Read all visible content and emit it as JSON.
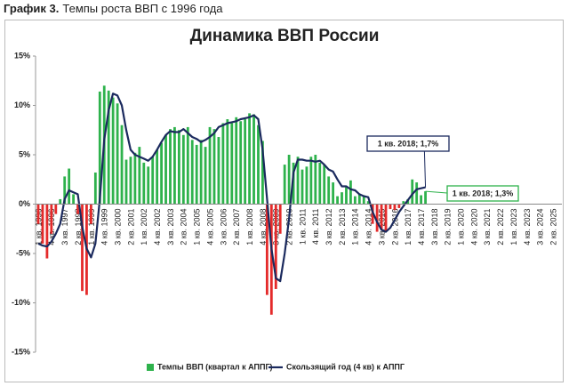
{
  "header": {
    "label": "График 3.",
    "text": "Темпы роста ВВП с 1996 года"
  },
  "chart_data": {
    "type": "bar-line",
    "title": "Динамика ВВП России",
    "categories": [
      "1 кв. 1996",
      null,
      null,
      "4 кв. 1996",
      null,
      null,
      "3 кв. 1997",
      null,
      null,
      "2 кв. 1998",
      null,
      null,
      "1 кв. 1999",
      null,
      null,
      "4 кв. 1999",
      null,
      null,
      "3 кв. 2000",
      null,
      null,
      "2 кв. 2001",
      null,
      null,
      "1 кв. 2002",
      null,
      null,
      "4 кв. 2002",
      null,
      null,
      "3 кв. 2003",
      null,
      null,
      "2 кв. 2004",
      null,
      null,
      "1 кв. 2005",
      null,
      null,
      "4 кв. 2005",
      null,
      null,
      "3 кв. 2006",
      null,
      null,
      "2 кв. 2007",
      null,
      null,
      "1 кв. 2008",
      null,
      null,
      "4 кв. 2008",
      null,
      null,
      "3 кв. 2009",
      null,
      null,
      "2 кв. 2010",
      null,
      null,
      "1 кв. 2011",
      null,
      null,
      "4 кв. 2011",
      null,
      null,
      "3 кв. 2012",
      null,
      null,
      "2 кв. 2013",
      null,
      null,
      "1 кв. 2014",
      null,
      null,
      "4 кв. 2014",
      null,
      null,
      "3 кв. 2015",
      null,
      null,
      "2 кв. 2016",
      null,
      null,
      "1 кв. 2017",
      null,
      null,
      "4 кв. 2017",
      null,
      null,
      "3 кв. 2018",
      null,
      null,
      "2 кв. 2019",
      null,
      null,
      "1 кв. 2020",
      null,
      null,
      "4 кв. 2020",
      null,
      null,
      "3 кв. 2021",
      null,
      null,
      "2 кв. 2022",
      null,
      null,
      "1 кв. 2023",
      null,
      null,
      "4 кв. 2023",
      null,
      null,
      "3 кв. 2024",
      null,
      null,
      "2 кв. 2025",
      null,
      null
    ],
    "series": [
      {
        "name": "Темпы ВВП (квартал к АППГ)",
        "type": "bar",
        "color": "#2eb24c",
        "negative_color": "#e42a2a",
        "values": [
          -2,
          -4,
          -5.5,
          -3,
          -1,
          0.5,
          2.8,
          3.6,
          1,
          -1,
          -8.8,
          -9.2,
          -2,
          3.2,
          11.4,
          12,
          11.5,
          10.8,
          10.2,
          8,
          4.5,
          4.8,
          5.2,
          5.8,
          4.2,
          3.8,
          4.8,
          5.5,
          6.2,
          7,
          7.6,
          7.8,
          7.5,
          7,
          7.8,
          6.5,
          6,
          6.5,
          5.8,
          7.8,
          7.6,
          6.8,
          8.2,
          8.6,
          8.2,
          8.8,
          8.4,
          8.6,
          9.2,
          9.1,
          8,
          6.4,
          -9.2,
          -11.2,
          -8.6,
          -3,
          4,
          5,
          4.2,
          4.8,
          3.5,
          3.8,
          4.8,
          5,
          4.2,
          4,
          2.8,
          2.2,
          0.8,
          1.2,
          1.8,
          2.4,
          0.8,
          1,
          0.9,
          0.3,
          -2,
          -2.8,
          -2.6,
          -2.7,
          -0.5,
          -0.6,
          -0.4,
          0.3,
          0.5,
          2.5,
          2.2,
          0.9,
          1.3,
          null,
          null,
          null,
          null,
          null,
          null,
          null,
          null,
          null,
          null,
          null,
          null,
          null,
          null,
          null,
          null,
          null,
          null,
          null,
          null,
          null,
          null,
          null,
          null,
          null,
          null,
          null,
          null,
          null,
          null,
          null
        ]
      },
      {
        "name": "Скользящий год (4 кв) к АППГ",
        "type": "line",
        "color": "#1b2a5e",
        "values": [
          -4,
          -4.2,
          -4.3,
          -3.8,
          -3,
          -2,
          0.5,
          1.4,
          1.2,
          1,
          -2.3,
          -4.5,
          -5.4,
          -4,
          0.5,
          6.5,
          9.5,
          11.2,
          11,
          10,
          7.5,
          5.5,
          5,
          4.8,
          4.6,
          4.4,
          4.8,
          5.5,
          6.3,
          7,
          7.4,
          7.3,
          7.3,
          7.6,
          7.2,
          6.8,
          6.6,
          6.3,
          6.5,
          6.8,
          7.2,
          7.8,
          8,
          8.2,
          8.3,
          8.4,
          8.6,
          8.7,
          8.8,
          9,
          8.6,
          5.5,
          0.5,
          -4.5,
          -7.5,
          -7.8,
          -5,
          -1.5,
          3.2,
          4.5,
          4.5,
          4.4,
          4.4,
          4.3,
          4.4,
          4,
          3.5,
          3.3,
          2.5,
          1.8,
          1.8,
          1.5,
          1.4,
          1,
          0.8,
          0.7,
          -0.8,
          -1.8,
          -2.6,
          -2.8,
          -2.4,
          -1.6,
          -0.8,
          -0.2,
          0.4,
          1,
          1.5,
          1.6,
          1.7,
          null,
          null,
          null,
          null,
          null,
          null,
          null,
          null,
          null,
          null,
          null,
          null,
          null,
          null,
          null,
          null,
          null,
          null,
          null,
          null,
          null,
          null,
          null,
          null,
          null,
          null,
          null,
          null,
          null,
          null,
          null
        ]
      }
    ],
    "ylim": [
      -15,
      15
    ],
    "yticks": [
      {
        "value": -15,
        "label": "-15%"
      },
      {
        "value": -10,
        "label": "-10%"
      },
      {
        "value": -5,
        "label": "-5%"
      },
      {
        "value": 0,
        "label": "0%"
      },
      {
        "value": 5,
        "label": "5%"
      },
      {
        "value": 10,
        "label": "10%"
      },
      {
        "value": 15,
        "label": "15%"
      }
    ],
    "grid": false,
    "legend": "bottom",
    "annotations": [
      {
        "text": "1 кв. 2018; 1,7%"
      },
      {
        "text": "1 кв. 2018; 1,3%"
      }
    ]
  }
}
